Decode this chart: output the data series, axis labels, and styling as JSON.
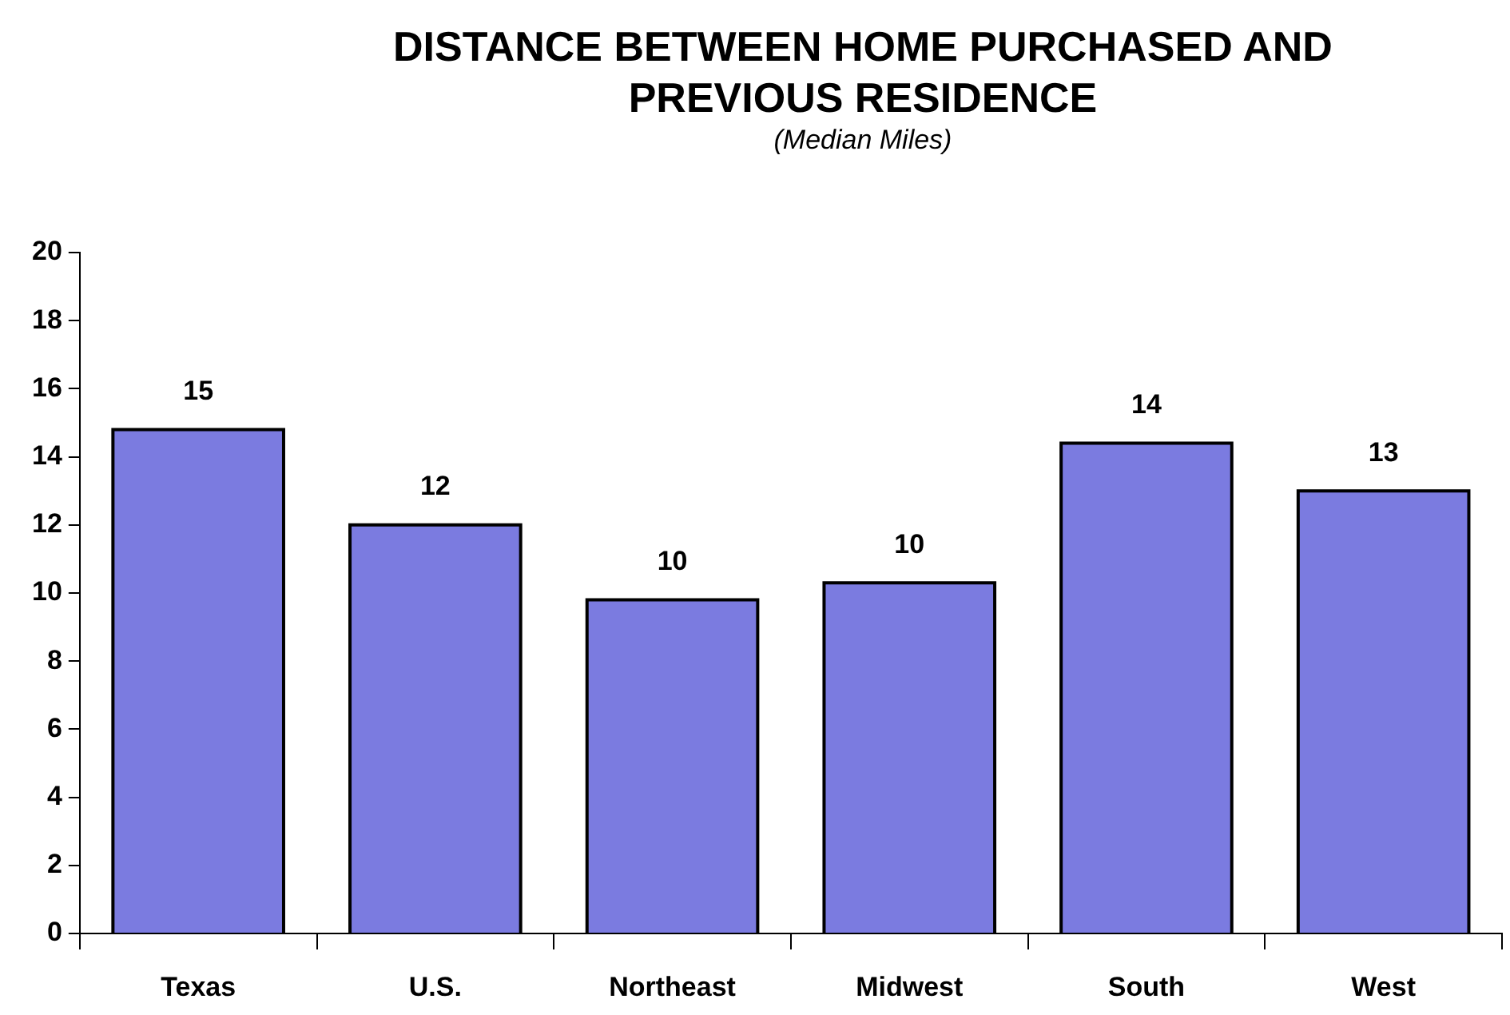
{
  "chart_data": {
    "type": "bar",
    "title": "DISTANCE BETWEEN HOME PURCHASED AND PREVIOUS RESIDENCE",
    "subtitle": "(Median Miles)",
    "categories": [
      "Texas",
      "U.S.",
      "Northeast",
      "Midwest",
      "South",
      "West"
    ],
    "values": [
      14.8,
      12.0,
      9.8,
      10.3,
      14.4,
      13.0
    ],
    "value_labels": [
      "15",
      "12",
      "10",
      "10",
      "14",
      "13"
    ],
    "color": "#7b7be0",
    "ylim": [
      0,
      20
    ],
    "yticks": [
      0,
      2,
      4,
      6,
      8,
      10,
      12,
      14,
      16,
      18,
      20
    ],
    "grid": false,
    "legend": false
  }
}
